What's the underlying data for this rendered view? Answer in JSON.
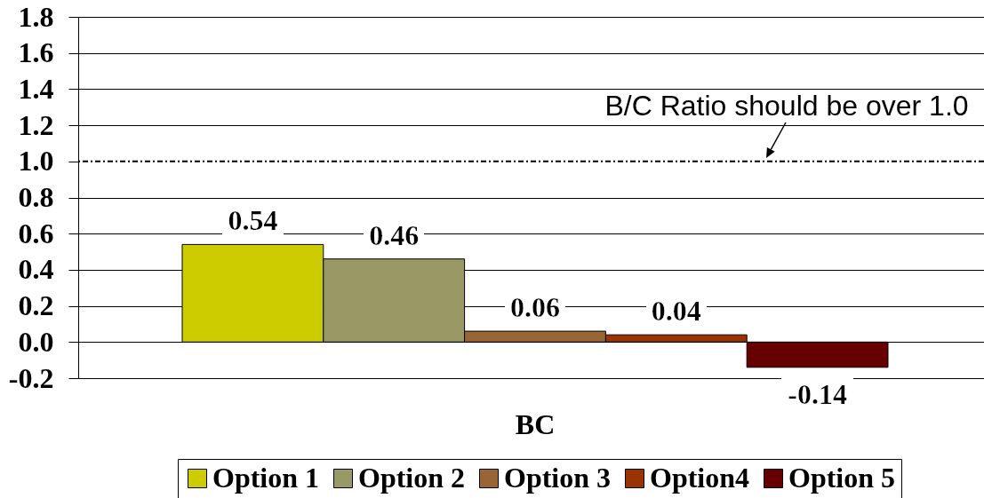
{
  "chart_data": {
    "type": "bar",
    "categories": [
      "BC"
    ],
    "series": [
      {
        "name": "Option 1",
        "color": "#cccc00",
        "values": [
          0.54
        ]
      },
      {
        "name": "Option 2",
        "color": "#999966",
        "values": [
          0.46
        ]
      },
      {
        "name": "Option 3",
        "color": "#996633",
        "values": [
          0.06
        ]
      },
      {
        "name": "Option4",
        "color": "#993300",
        "values": [
          0.04
        ]
      },
      {
        "name": "Option 5",
        "color": "#660000",
        "values": [
          -0.14
        ]
      }
    ],
    "ylim": [
      -0.2,
      1.8
    ],
    "yticks": [
      -0.2,
      {
        "value": 0,
        "label": "0.0"
      },
      0.2,
      0.4,
      0.6,
      0.8,
      {
        "value": 1,
        "label": "1.0"
      },
      1.2,
      1.4,
      1.6,
      1.8
    ],
    "grid": "y",
    "legend": "bottom",
    "data_labels": true,
    "ref_lines": [
      {
        "axis": "y",
        "value": 1,
        "label": "B/C Ratio should be over 1.0",
        "color": "#000000",
        "line_style": "dashed"
      }
    ]
  }
}
